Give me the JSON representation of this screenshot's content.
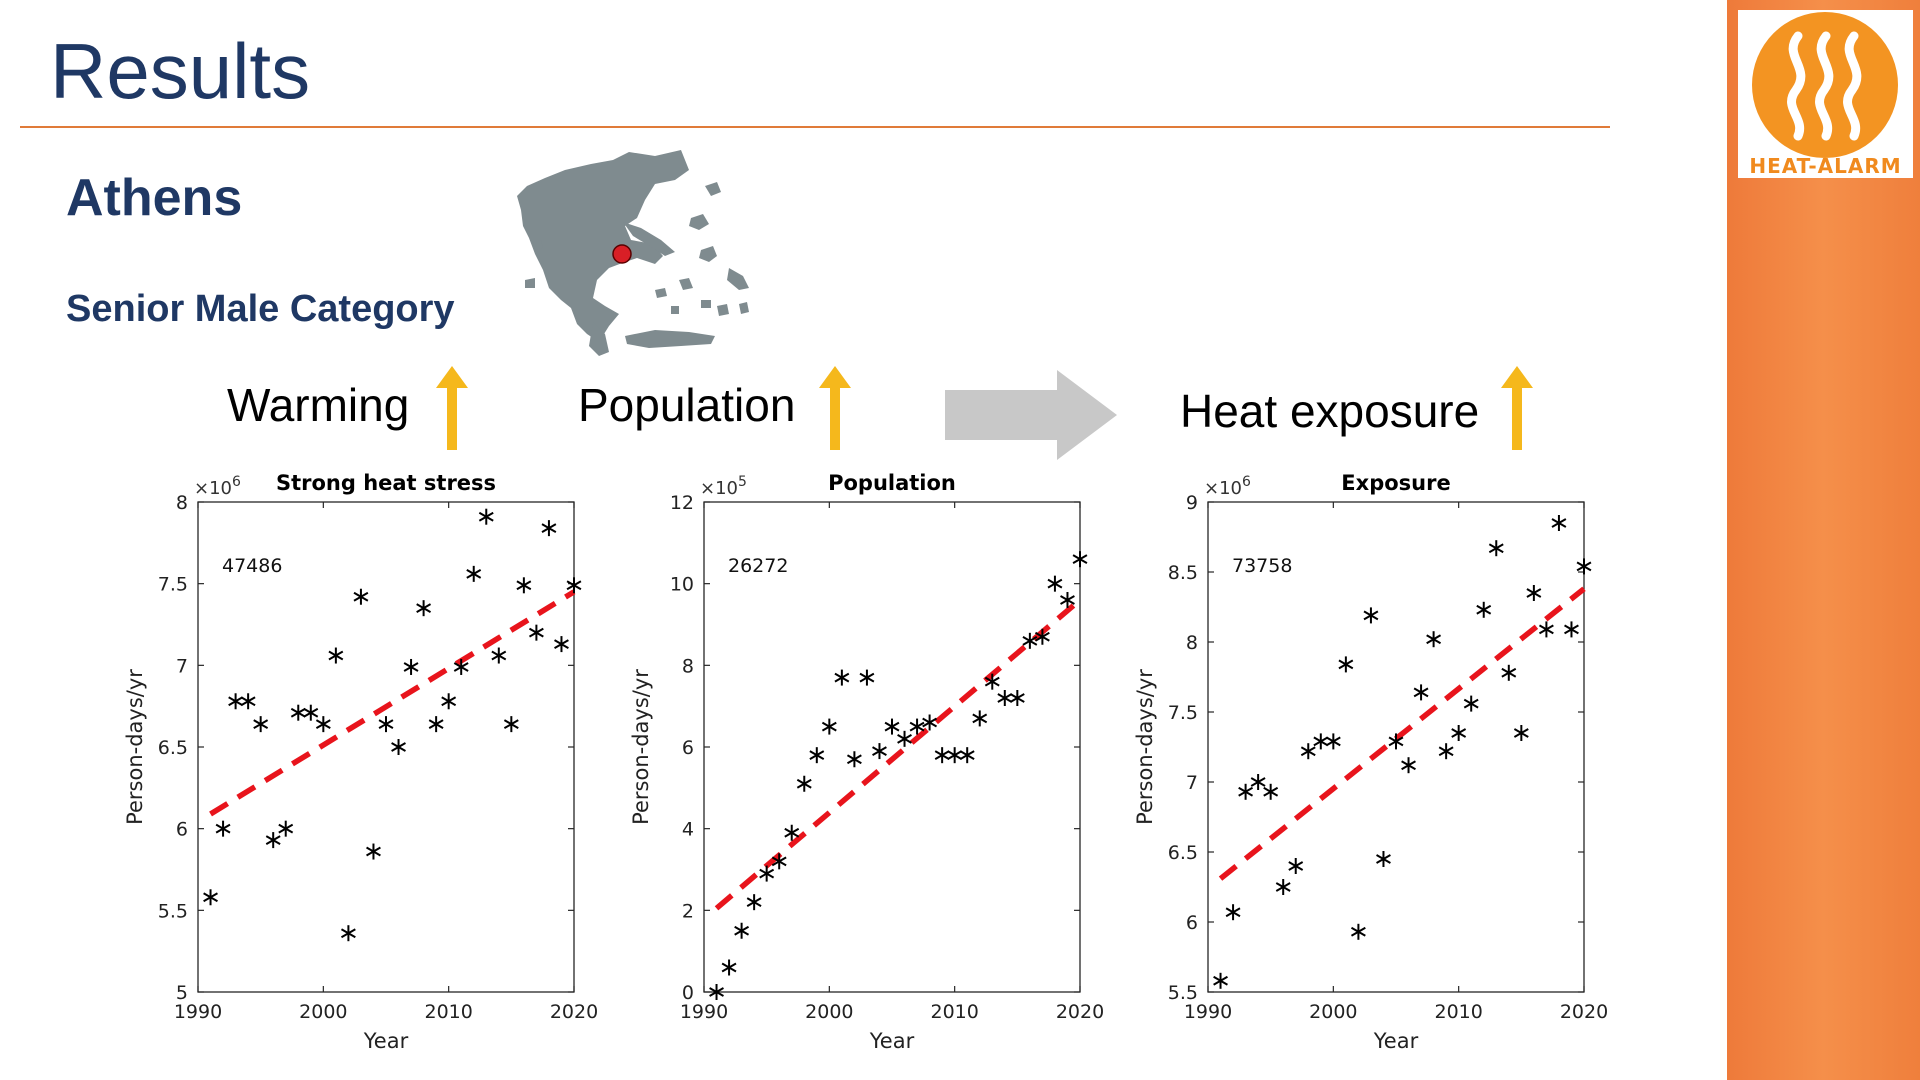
{
  "slide": {
    "title": "Results",
    "city": "Athens",
    "category": "Senior Male Category",
    "colors": {
      "title": "#1f3864",
      "rule": "#e07b39",
      "arrow_up": "#f5b81c",
      "flow_arrow": "#c8c8c8",
      "trend_line": "#e8141c"
    }
  },
  "trends": {
    "warming": "Warming",
    "population": "Population",
    "exposure": "Heat exposure",
    "arrow_icon": "up-arrow-icon",
    "flow_icon": "right-arrow-icon"
  },
  "logo": {
    "text": "HEAT-ALARM",
    "icon": "heat-waves-icon"
  },
  "chart_data": [
    {
      "type": "scatter",
      "title": "Strong heat stress",
      "xlabel": "Year",
      "ylabel": "Person-days/yr",
      "multiplier": "×10",
      "exponent": "6",
      "annotation": "47486",
      "xlim": [
        1990,
        2020
      ],
      "ylim": [
        5,
        8
      ],
      "xticks": [
        1990,
        2000,
        2010,
        2020
      ],
      "yticks": [
        5,
        5.5,
        6,
        6.5,
        7,
        7.5,
        8
      ],
      "marker": "asterisk",
      "x": [
        1991,
        1992,
        1993,
        1994,
        1995,
        1996,
        1997,
        1998,
        1999,
        2000,
        2001,
        2002,
        2003,
        2004,
        2005,
        2006,
        2007,
        2008,
        2009,
        2010,
        2011,
        2012,
        2013,
        2014,
        2015,
        2016,
        2017,
        2018,
        2019,
        2020
      ],
      "y": [
        5.58,
        6.0,
        6.78,
        6.78,
        6.64,
        5.93,
        6.0,
        6.71,
        6.71,
        6.64,
        7.06,
        5.36,
        7.42,
        5.86,
        6.64,
        6.5,
        6.99,
        7.35,
        6.64,
        6.78,
        6.99,
        7.56,
        7.91,
        7.06,
        6.64,
        7.49,
        7.2,
        7.84,
        7.13,
        7.49
      ],
      "trend": {
        "x": [
          1991,
          2020
        ],
        "y": [
          6.09,
          7.45
        ]
      }
    },
    {
      "type": "scatter",
      "title": "Population",
      "xlabel": "Year",
      "ylabel": "Person-days/yr",
      "multiplier": "×10",
      "exponent": "5",
      "annotation": "26272",
      "xlim": [
        1990,
        2020
      ],
      "ylim": [
        0,
        12
      ],
      "xticks": [
        1990,
        2000,
        2010,
        2020
      ],
      "yticks": [
        0,
        2,
        4,
        6,
        8,
        10,
        12
      ],
      "marker": "asterisk",
      "x": [
        1991,
        1992,
        1993,
        1994,
        1995,
        1996,
        1997,
        1998,
        1999,
        2000,
        2001,
        2002,
        2003,
        2004,
        2005,
        2006,
        2007,
        2008,
        2009,
        2010,
        2011,
        2012,
        2013,
        2014,
        2015,
        2016,
        2017,
        2018,
        2019,
        2020
      ],
      "y": [
        0.0,
        0.6,
        1.5,
        2.2,
        2.9,
        3.2,
        3.9,
        5.1,
        5.8,
        6.5,
        7.7,
        5.7,
        7.7,
        5.9,
        6.5,
        6.2,
        6.5,
        6.6,
        5.8,
        5.8,
        5.8,
        6.7,
        7.6,
        7.2,
        7.2,
        8.6,
        8.7,
        10.0,
        9.6,
        10.6
      ],
      "trend": {
        "x": [
          1991,
          2020
        ],
        "y": [
          2.05,
          9.6
        ]
      }
    },
    {
      "type": "scatter",
      "title": "Exposure",
      "xlabel": "Year",
      "ylabel": "Person-days/yr",
      "multiplier": "×10",
      "exponent": "6",
      "annotation": "73758",
      "xlim": [
        1990,
        2020
      ],
      "ylim": [
        5.5,
        9
      ],
      "xticks": [
        1990,
        2000,
        2010,
        2020
      ],
      "yticks": [
        5.5,
        6,
        6.5,
        7,
        7.5,
        8,
        8.5,
        9
      ],
      "marker": "asterisk",
      "x": [
        1991,
        1992,
        1993,
        1994,
        1995,
        1996,
        1997,
        1998,
        1999,
        2000,
        2001,
        2002,
        2003,
        2004,
        2005,
        2006,
        2007,
        2008,
        2009,
        2010,
        2011,
        2012,
        2013,
        2014,
        2015,
        2016,
        2017,
        2018,
        2019,
        2020
      ],
      "y": [
        5.58,
        6.07,
        6.93,
        7.0,
        6.93,
        6.25,
        6.4,
        7.22,
        7.29,
        7.29,
        7.84,
        5.93,
        8.19,
        6.45,
        7.29,
        7.12,
        7.64,
        8.02,
        7.22,
        7.35,
        7.56,
        8.23,
        8.67,
        7.78,
        7.35,
        8.35,
        8.09,
        8.85,
        8.09,
        8.54
      ],
      "trend": {
        "x": [
          1991,
          2020
        ],
        "y": [
          6.31,
          8.38
        ]
      }
    }
  ]
}
